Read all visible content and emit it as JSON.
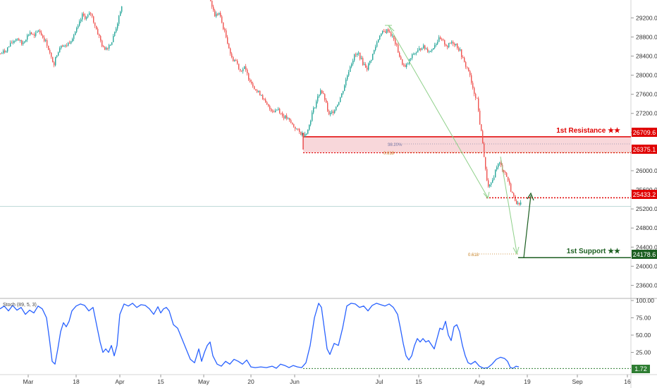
{
  "chart_data": [
    {
      "type": "candlestick",
      "title": "",
      "ylabel": "",
      "ylim": [
        23400,
        29500
      ],
      "y_ticks": [
        23600,
        24000,
        24400,
        24800,
        25200,
        25600,
        26000,
        26400,
        26800,
        27200,
        27600,
        28000,
        28400,
        28800,
        29200
      ],
      "x_tick_labels": [
        "Mar",
        "18",
        "Apr",
        "15",
        "May",
        "20",
        "Jun",
        "Jul",
        "15",
        "Aug",
        "19",
        "Sep",
        "16"
      ],
      "colors": {
        "up": "#26a69a",
        "down": "#ef5350"
      },
      "price_path": [
        {
          "x": 0,
          "y": 28450
        },
        {
          "x": 6,
          "y": 28500
        },
        {
          "x": 12,
          "y": 28600
        },
        {
          "x": 18,
          "y": 28720
        },
        {
          "x": 24,
          "y": 28780
        },
        {
          "x": 30,
          "y": 28650
        },
        {
          "x": 36,
          "y": 28780
        },
        {
          "x": 42,
          "y": 28900
        },
        {
          "x": 48,
          "y": 28800
        },
        {
          "x": 54,
          "y": 28950
        },
        {
          "x": 60,
          "y": 28800
        },
        {
          "x": 66,
          "y": 28650
        },
        {
          "x": 72,
          "y": 28350
        },
        {
          "x": 76,
          "y": 28250
        },
        {
          "x": 80,
          "y": 28450
        },
        {
          "x": 86,
          "y": 28650
        },
        {
          "x": 92,
          "y": 28600
        },
        {
          "x": 98,
          "y": 28700
        },
        {
          "x": 104,
          "y": 28850
        },
        {
          "x": 110,
          "y": 29000
        },
        {
          "x": 116,
          "y": 29250
        },
        {
          "x": 122,
          "y": 29200
        },
        {
          "x": 128,
          "y": 29300
        },
        {
          "x": 134,
          "y": 29050
        },
        {
          "x": 140,
          "y": 28800
        },
        {
          "x": 146,
          "y": 28550
        },
        {
          "x": 152,
          "y": 28600
        },
        {
          "x": 158,
          "y": 28700
        },
        {
          "x": 164,
          "y": 29000
        },
        {
          "x": 170,
          "y": 29300
        },
        {
          "x": 173,
          "y": 29550
        },
        {
          "x": 298,
          "y": 29550
        },
        {
          "x": 304,
          "y": 29250
        },
        {
          "x": 310,
          "y": 29300
        },
        {
          "x": 316,
          "y": 29000
        },
        {
          "x": 322,
          "y": 28700
        },
        {
          "x": 328,
          "y": 28350
        },
        {
          "x": 334,
          "y": 28300
        },
        {
          "x": 340,
          "y": 28100
        },
        {
          "x": 346,
          "y": 28150
        },
        {
          "x": 352,
          "y": 27950
        },
        {
          "x": 358,
          "y": 27800
        },
        {
          "x": 364,
          "y": 27650
        },
        {
          "x": 370,
          "y": 27600
        },
        {
          "x": 376,
          "y": 27400
        },
        {
          "x": 382,
          "y": 27300
        },
        {
          "x": 388,
          "y": 27250
        },
        {
          "x": 394,
          "y": 27300
        },
        {
          "x": 400,
          "y": 27150
        },
        {
          "x": 406,
          "y": 27100
        },
        {
          "x": 412,
          "y": 27000
        },
        {
          "x": 418,
          "y": 26900
        },
        {
          "x": 424,
          "y": 26800
        },
        {
          "x": 430,
          "y": 26750
        },
        {
          "x": 436,
          "y": 26850
        },
        {
          "x": 442,
          "y": 27200
        },
        {
          "x": 448,
          "y": 27450
        },
        {
          "x": 454,
          "y": 27700
        },
        {
          "x": 460,
          "y": 27500
        },
        {
          "x": 466,
          "y": 27150
        },
        {
          "x": 472,
          "y": 27250
        },
        {
          "x": 478,
          "y": 27400
        },
        {
          "x": 484,
          "y": 27600
        },
        {
          "x": 490,
          "y": 27900
        },
        {
          "x": 496,
          "y": 28200
        },
        {
          "x": 502,
          "y": 28400
        },
        {
          "x": 508,
          "y": 28450
        },
        {
          "x": 514,
          "y": 28250
        },
        {
          "x": 520,
          "y": 28150
        },
        {
          "x": 526,
          "y": 28350
        },
        {
          "x": 532,
          "y": 28600
        },
        {
          "x": 538,
          "y": 28850
        },
        {
          "x": 544,
          "y": 28900
        },
        {
          "x": 550,
          "y": 28950
        },
        {
          "x": 556,
          "y": 28800
        },
        {
          "x": 562,
          "y": 28600
        },
        {
          "x": 568,
          "y": 28300
        },
        {
          "x": 574,
          "y": 28150
        },
        {
          "x": 580,
          "y": 28300
        },
        {
          "x": 586,
          "y": 28450
        },
        {
          "x": 592,
          "y": 28500
        },
        {
          "x": 598,
          "y": 28600
        },
        {
          "x": 604,
          "y": 28550
        },
        {
          "x": 610,
          "y": 28500
        },
        {
          "x": 616,
          "y": 28650
        },
        {
          "x": 622,
          "y": 28750
        },
        {
          "x": 628,
          "y": 28700
        },
        {
          "x": 634,
          "y": 28600
        },
        {
          "x": 640,
          "y": 28700
        },
        {
          "x": 646,
          "y": 28650
        },
        {
          "x": 652,
          "y": 28500
        },
        {
          "x": 658,
          "y": 28250
        },
        {
          "x": 664,
          "y": 28100
        },
        {
          "x": 670,
          "y": 27700
        },
        {
          "x": 676,
          "y": 27500
        },
        {
          "x": 680,
          "y": 27000
        },
        {
          "x": 684,
          "y": 26600
        },
        {
          "x": 688,
          "y": 26000
        },
        {
          "x": 692,
          "y": 25650
        },
        {
          "x": 696,
          "y": 25700
        },
        {
          "x": 700,
          "y": 25900
        },
        {
          "x": 704,
          "y": 26100
        },
        {
          "x": 708,
          "y": 26150
        },
        {
          "x": 712,
          "y": 26050
        },
        {
          "x": 716,
          "y": 25950
        },
        {
          "x": 720,
          "y": 25800
        },
        {
          "x": 724,
          "y": 25600
        },
        {
          "x": 728,
          "y": 25450
        },
        {
          "x": 732,
          "y": 25350
        },
        {
          "x": 736,
          "y": 25250
        },
        {
          "x": 740,
          "y": 25350
        }
      ],
      "annotations": {
        "resistance": {
          "label": "1st Resistance ★★",
          "upper": "26709.6",
          "lower": "26375.1",
          "upper_value": 26709.6,
          "lower_value": 26375.1,
          "zone_color": "#f8d7da",
          "color": "#e00000"
        },
        "pivot": {
          "label": "25433.2",
          "value": 25433.2,
          "color": "#e00000"
        },
        "support": {
          "label": "1st Support ★★",
          "price": "24178.6",
          "value": 24178.6,
          "color": "#1b5e20"
        },
        "current_level": 25250,
        "fib_resistance_1": "38.20%",
        "fib_resistance_2": "0.618",
        "fib_support": "0.618"
      }
    },
    {
      "type": "line",
      "title": "Stoch (89, 5, 3)",
      "ylim": [
        0,
        100
      ],
      "y_ticks": [
        1.72,
        25,
        50,
        75,
        100
      ],
      "tick_labels": [
        "1.72",
        "25.00",
        "50.00",
        "75.00",
        "100.00"
      ],
      "current_value": "1.72",
      "colors": {
        "line": "#2962ff",
        "ref": "#2e7d32"
      },
      "series": [
        {
          "values": [
            {
              "x": 0,
              "y": 88
            },
            {
              "x": 6,
              "y": 92
            },
            {
              "x": 12,
              "y": 85
            },
            {
              "x": 18,
              "y": 93
            },
            {
              "x": 24,
              "y": 86
            },
            {
              "x": 30,
              "y": 90
            },
            {
              "x": 36,
              "y": 80
            },
            {
              "x": 42,
              "y": 86
            },
            {
              "x": 48,
              "y": 82
            },
            {
              "x": 54,
              "y": 92
            },
            {
              "x": 60,
              "y": 88
            },
            {
              "x": 66,
              "y": 75
            },
            {
              "x": 70,
              "y": 45
            },
            {
              "x": 74,
              "y": 12
            },
            {
              "x": 78,
              "y": 8
            },
            {
              "x": 82,
              "y": 30
            },
            {
              "x": 86,
              "y": 55
            },
            {
              "x": 90,
              "y": 68
            },
            {
              "x": 94,
              "y": 62
            },
            {
              "x": 98,
              "y": 70
            },
            {
              "x": 102,
              "y": 85
            },
            {
              "x": 108,
              "y": 92
            },
            {
              "x": 114,
              "y": 95
            },
            {
              "x": 120,
              "y": 93
            },
            {
              "x": 126,
              "y": 85
            },
            {
              "x": 132,
              "y": 90
            },
            {
              "x": 138,
              "y": 60
            },
            {
              "x": 142,
              "y": 40
            },
            {
              "x": 146,
              "y": 25
            },
            {
              "x": 150,
              "y": 30
            },
            {
              "x": 154,
              "y": 25
            },
            {
              "x": 158,
              "y": 35
            },
            {
              "x": 162,
              "y": 20
            },
            {
              "x": 166,
              "y": 35
            },
            {
              "x": 170,
              "y": 80
            },
            {
              "x": 176,
              "y": 95
            },
            {
              "x": 182,
              "y": 92
            },
            {
              "x": 188,
              "y": 96
            },
            {
              "x": 194,
              "y": 90
            },
            {
              "x": 200,
              "y": 94
            },
            {
              "x": 206,
              "y": 93
            },
            {
              "x": 212,
              "y": 88
            },
            {
              "x": 218,
              "y": 80
            },
            {
              "x": 224,
              "y": 91
            },
            {
              "x": 228,
              "y": 82
            },
            {
              "x": 232,
              "y": 88
            },
            {
              "x": 236,
              "y": 90
            },
            {
              "x": 240,
              "y": 85
            },
            {
              "x": 246,
              "y": 65
            },
            {
              "x": 252,
              "y": 60
            },
            {
              "x": 258,
              "y": 45
            },
            {
              "x": 264,
              "y": 30
            },
            {
              "x": 270,
              "y": 15
            },
            {
              "x": 276,
              "y": 10
            },
            {
              "x": 282,
              "y": 30
            },
            {
              "x": 286,
              "y": 12
            },
            {
              "x": 290,
              "y": 25
            },
            {
              "x": 294,
              "y": 35
            },
            {
              "x": 298,
              "y": 40
            },
            {
              "x": 302,
              "y": 20
            },
            {
              "x": 308,
              "y": 8
            },
            {
              "x": 314,
              "y": 5
            },
            {
              "x": 320,
              "y": 12
            },
            {
              "x": 326,
              "y": 8
            },
            {
              "x": 332,
              "y": 15
            },
            {
              "x": 338,
              "y": 12
            },
            {
              "x": 344,
              "y": 8
            },
            {
              "x": 350,
              "y": 14
            },
            {
              "x": 356,
              "y": 4
            },
            {
              "x": 362,
              "y": 3
            },
            {
              "x": 370,
              "y": 4
            },
            {
              "x": 378,
              "y": 3
            },
            {
              "x": 386,
              "y": 5
            },
            {
              "x": 392,
              "y": 2
            },
            {
              "x": 398,
              "y": 8
            },
            {
              "x": 404,
              "y": 6
            },
            {
              "x": 410,
              "y": 3
            },
            {
              "x": 416,
              "y": 6
            },
            {
              "x": 422,
              "y": 4
            },
            {
              "x": 428,
              "y": 3
            },
            {
              "x": 434,
              "y": 10
            },
            {
              "x": 440,
              "y": 35
            },
            {
              "x": 446,
              "y": 75
            },
            {
              "x": 452,
              "y": 96
            },
            {
              "x": 456,
              "y": 90
            },
            {
              "x": 460,
              "y": 60
            },
            {
              "x": 464,
              "y": 30
            },
            {
              "x": 468,
              "y": 22
            },
            {
              "x": 474,
              "y": 38
            },
            {
              "x": 480,
              "y": 35
            },
            {
              "x": 486,
              "y": 60
            },
            {
              "x": 492,
              "y": 92
            },
            {
              "x": 498,
              "y": 96
            },
            {
              "x": 504,
              "y": 95
            },
            {
              "x": 510,
              "y": 90
            },
            {
              "x": 516,
              "y": 92
            },
            {
              "x": 522,
              "y": 85
            },
            {
              "x": 528,
              "y": 93
            },
            {
              "x": 534,
              "y": 96
            },
            {
              "x": 540,
              "y": 94
            },
            {
              "x": 546,
              "y": 92
            },
            {
              "x": 552,
              "y": 95
            },
            {
              "x": 558,
              "y": 90
            },
            {
              "x": 564,
              "y": 80
            },
            {
              "x": 568,
              "y": 60
            },
            {
              "x": 572,
              "y": 38
            },
            {
              "x": 576,
              "y": 20
            },
            {
              "x": 580,
              "y": 14
            },
            {
              "x": 584,
              "y": 20
            },
            {
              "x": 588,
              "y": 35
            },
            {
              "x": 592,
              "y": 45
            },
            {
              "x": 596,
              "y": 40
            },
            {
              "x": 600,
              "y": 45
            },
            {
              "x": 604,
              "y": 40
            },
            {
              "x": 608,
              "y": 42
            },
            {
              "x": 612,
              "y": 36
            },
            {
              "x": 616,
              "y": 30
            },
            {
              "x": 620,
              "y": 45
            },
            {
              "x": 624,
              "y": 60
            },
            {
              "x": 628,
              "y": 58
            },
            {
              "x": 632,
              "y": 70
            },
            {
              "x": 636,
              "y": 50
            },
            {
              "x": 640,
              "y": 42
            },
            {
              "x": 644,
              "y": 62
            },
            {
              "x": 648,
              "y": 65
            },
            {
              "x": 652,
              "y": 55
            },
            {
              "x": 656,
              "y": 35
            },
            {
              "x": 660,
              "y": 20
            },
            {
              "x": 664,
              "y": 10
            },
            {
              "x": 668,
              "y": 8
            },
            {
              "x": 674,
              "y": 12
            },
            {
              "x": 680,
              "y": 5
            },
            {
              "x": 686,
              "y": 2
            },
            {
              "x": 692,
              "y": 3
            },
            {
              "x": 698,
              "y": 8
            },
            {
              "x": 704,
              "y": 15
            },
            {
              "x": 710,
              "y": 18
            },
            {
              "x": 716,
              "y": 16
            },
            {
              "x": 720,
              "y": 12
            },
            {
              "x": 724,
              "y": 3
            },
            {
              "x": 728,
              "y": 2
            },
            {
              "x": 732,
              "y": 5
            },
            {
              "x": 736,
              "y": 4
            }
          ]
        }
      ]
    }
  ]
}
